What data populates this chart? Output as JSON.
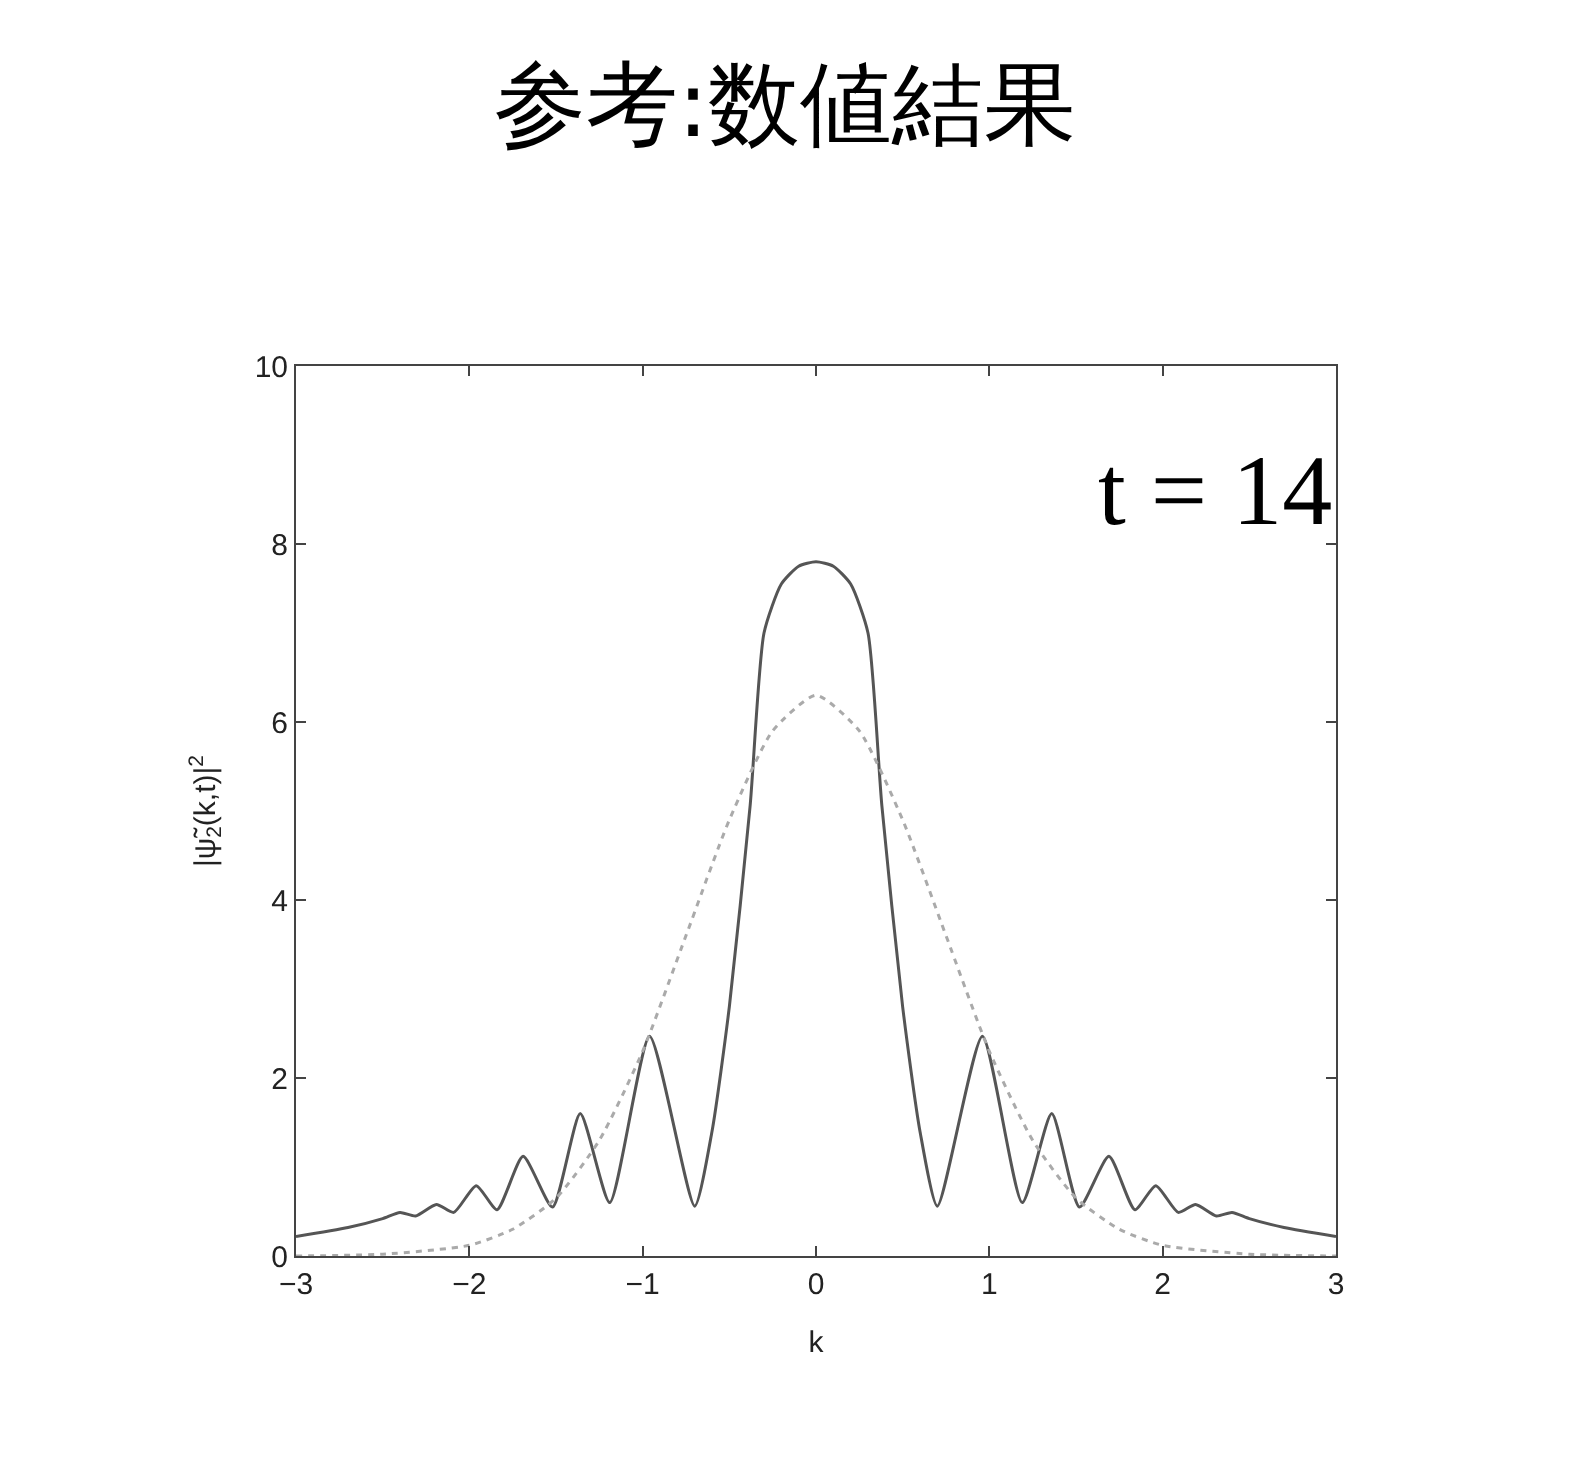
{
  "chart_data": {
    "type": "line",
    "title": "参考:数値結果",
    "xlabel": "k",
    "ylabel": "|ψ̃$_{2}$(k,t)|$^{2}$",
    "annotations": [
      "t = 14"
    ],
    "xlim": [
      -3,
      3
    ],
    "ylim": [
      0,
      10
    ],
    "xticks": [
      {
        "value": -3,
        "label": "−3"
      },
      {
        "value": -2,
        "label": "−2"
      },
      {
        "value": -1,
        "label": "−1"
      },
      0,
      1,
      2,
      3
    ],
    "yticks": [
      0,
      2,
      4,
      6,
      8,
      10
    ],
    "marker": "none",
    "series": [
      {
        "color": "#555555",
        "line_style": "solid",
        "x": [
          -3,
          -2.7,
          -2.5,
          -2.4,
          -2.31,
          -2.19,
          -2.09,
          -1.96,
          -1.84,
          -1.69,
          -1.52,
          -1.36,
          -1.19,
          -0.96,
          -0.7,
          -0.6,
          -0.5,
          -0.38,
          -0.3,
          -0.2,
          -0.1,
          0,
          0.1,
          0.2,
          0.3,
          0.38,
          0.5,
          0.6,
          0.7,
          0.96,
          1.19,
          1.36,
          1.52,
          1.69,
          1.84,
          1.96,
          2.09,
          2.19,
          2.31,
          2.4,
          2.5,
          2.7,
          3
        ],
        "values": [
          0.22,
          0.32,
          0.42,
          0.49,
          0.45,
          0.58,
          0.49,
          0.79,
          0.52,
          1.12,
          0.55,
          1.6,
          0.6,
          2.47,
          0.56,
          1.4,
          2.8,
          5.06,
          7.0,
          7.55,
          7.75,
          7.8,
          7.75,
          7.55,
          7.0,
          5.06,
          2.8,
          1.4,
          0.56,
          2.47,
          0.6,
          1.6,
          0.55,
          1.12,
          0.52,
          0.79,
          0.49,
          0.58,
          0.45,
          0.49,
          0.42,
          0.32,
          0.22
        ]
      },
      {
        "color": "#aaaaaa",
        "line_style": "dotted",
        "x": [
          -3,
          -2.5,
          -2,
          -1.75,
          -1.5,
          -1.25,
          -1,
          -0.75,
          -0.5,
          -0.25,
          0,
          0.25,
          0.5,
          0.75,
          1,
          1.25,
          1.5,
          1.75,
          2,
          2.5,
          3
        ],
        "values": [
          0,
          0.02,
          0.12,
          0.3,
          0.65,
          1.3,
          2.3,
          3.6,
          4.9,
          5.9,
          6.3,
          5.9,
          4.9,
          3.6,
          2.3,
          1.3,
          0.65,
          0.3,
          0.12,
          0.02,
          0
        ]
      }
    ]
  }
}
